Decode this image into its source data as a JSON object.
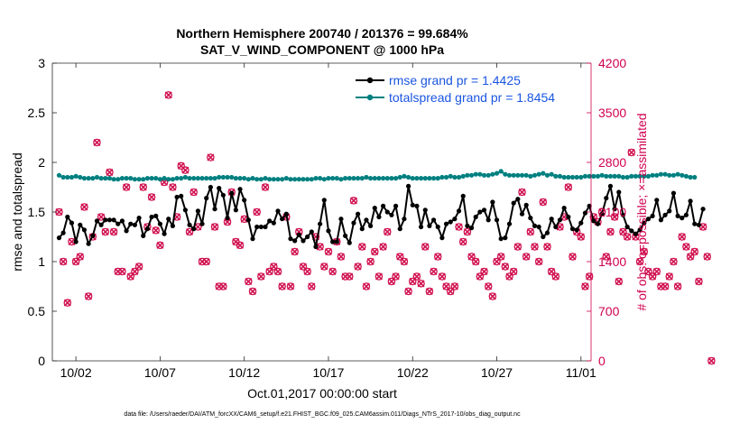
{
  "chart_data": {
    "type": "line",
    "title": "Northern Hemisphere 200740 / 201376 = 99.684%",
    "subtitle": "SAT_V_WIND_COMPONENT @ 1000 hPa",
    "xlabel": "Oct.01,2017 00:00:00 start",
    "ylabel_left": "rmse and totalspread",
    "ylabel_right": "# of obs: o=possible; ×=assimilated",
    "footnote": "data file: /Users/raeder/DAI/ATM_forcXX/CAM6_setup/f.e21.FHIST_BGC.f09_025.CAM6assim.011/Diags_NTrS_2017-10/obs_diag_output.nc",
    "xlim": [
      0.6,
      32.6
    ],
    "ylim_left": [
      0,
      3
    ],
    "ylim_right": [
      0,
      4200
    ],
    "x_ticks": [
      {
        "v": 2,
        "label": "10/02"
      },
      {
        "v": 7,
        "label": "10/07"
      },
      {
        "v": 12,
        "label": "10/12"
      },
      {
        "v": 17,
        "label": "10/17"
      },
      {
        "v": 22,
        "label": "10/22"
      },
      {
        "v": 27,
        "label": "10/27"
      },
      {
        "v": 32,
        "label": "11/01"
      }
    ],
    "y_ticks_left": [
      "0",
      "0.5",
      "1",
      "1.5",
      "2",
      "2.5",
      "3"
    ],
    "y_ticks_right": [
      "0",
      "700",
      "1400",
      "2100",
      "2800",
      "3500",
      "4200"
    ],
    "legend": [
      "rmse grand pr = 1.4425",
      "totalspread grand pr = 1.8454"
    ],
    "x_start": 1.0,
    "x_step": 0.25,
    "series": [
      {
        "name": "rmse",
        "color": "#000000",
        "axis": "left",
        "values": [
          1.24,
          1.29,
          1.45,
          1.39,
          1.2,
          1.37,
          1.32,
          1.18,
          1.26,
          1.41,
          1.37,
          1.42,
          1.42,
          1.42,
          1.38,
          1.41,
          1.31,
          1.38,
          1.37,
          1.44,
          1.26,
          1.33,
          1.45,
          1.46,
          1.38,
          1.28,
          1.43,
          1.36,
          1.65,
          1.66,
          1.52,
          1.37,
          1.33,
          1.51,
          1.38,
          1.64,
          1.75,
          1.53,
          1.74,
          1.67,
          1.44,
          1.69,
          1.52,
          1.73,
          1.62,
          1.42,
          1.23,
          1.35,
          1.35,
          1.35,
          1.41,
          1.39,
          1.51,
          1.43,
          1.48,
          1.23,
          1.21,
          1.27,
          1.21,
          1.25,
          1.3,
          1.15,
          1.38,
          1.62,
          1.31,
          1.2,
          1.2,
          1.43,
          1.26,
          1.19,
          1.39,
          1.48,
          1.33,
          1.42,
          1.36,
          1.54,
          1.45,
          1.56,
          1.5,
          1.47,
          1.56,
          1.33,
          1.43,
          1.76,
          1.57,
          1.56,
          1.35,
          1.52,
          1.36,
          1.42,
          1.35,
          1.24,
          1.38,
          1.4,
          1.43,
          1.51,
          1.66,
          1.36,
          1.34,
          1.45,
          1.5,
          1.52,
          1.42,
          1.6,
          1.42,
          1.23,
          1.24,
          1.38,
          1.59,
          1.63,
          1.48,
          1.57,
          1.44,
          1.36,
          1.35,
          1.25,
          1.29,
          1.43,
          1.35,
          1.42,
          1.54,
          1.45,
          1.33,
          1.32,
          1.39,
          1.49,
          1.56,
          1.41,
          1.38,
          1.48,
          1.64,
          1.76,
          1.53,
          1.7,
          1.47,
          1.35,
          1.31,
          1.28,
          1.32,
          1.39,
          1.43,
          1.46,
          1.62,
          1.42,
          1.47,
          1.51,
          1.69,
          1.46,
          1.44,
          1.47,
          1.61,
          1.38,
          1.37,
          1.53
        ]
      },
      {
        "name": "totalspread",
        "color": "#008080",
        "axis": "left",
        "values": [
          1.87,
          1.85,
          1.85,
          1.85,
          1.86,
          1.85,
          1.84,
          1.84,
          1.84,
          1.85,
          1.84,
          1.84,
          1.84,
          1.83,
          1.83,
          1.84,
          1.84,
          1.84,
          1.83,
          1.83,
          1.83,
          1.84,
          1.84,
          1.84,
          1.83,
          1.84,
          1.83,
          1.83,
          1.84,
          1.84,
          1.85,
          1.84,
          1.84,
          1.84,
          1.84,
          1.84,
          1.84,
          1.84,
          1.85,
          1.85,
          1.85,
          1.85,
          1.84,
          1.84,
          1.84,
          1.83,
          1.84,
          1.83,
          1.83,
          1.84,
          1.83,
          1.83,
          1.83,
          1.83,
          1.84,
          1.83,
          1.83,
          1.83,
          1.83,
          1.83,
          1.83,
          1.84,
          1.84,
          1.83,
          1.84,
          1.84,
          1.84,
          1.83,
          1.84,
          1.84,
          1.84,
          1.84,
          1.84,
          1.85,
          1.84,
          1.84,
          1.84,
          1.84,
          1.84,
          1.84,
          1.84,
          1.85,
          1.86,
          1.85,
          1.84,
          1.84,
          1.84,
          1.84,
          1.84,
          1.84,
          1.84,
          1.85,
          1.85,
          1.86,
          1.85,
          1.85,
          1.86,
          1.87,
          1.87,
          1.88,
          1.88,
          1.87,
          1.87,
          1.88,
          1.89,
          1.91,
          1.88,
          1.87,
          1.87,
          1.87,
          1.87,
          1.87,
          1.86,
          1.87,
          1.88,
          1.89,
          1.87,
          1.88,
          1.86,
          1.86,
          1.85,
          1.85,
          1.85,
          1.85,
          1.85,
          1.86,
          1.86,
          1.86,
          1.86,
          1.87,
          1.86,
          1.86,
          1.86,
          1.86,
          1.85,
          1.85,
          1.86,
          1.86,
          1.86,
          1.86,
          1.86,
          1.87,
          1.87,
          1.88,
          1.88,
          1.87,
          1.87,
          1.88,
          1.87,
          1.86,
          1.85,
          1.85
        ]
      },
      {
        "name": "obs_possible",
        "color": "#d0104f",
        "axis": "right",
        "values": [
          2100,
          1400,
          819,
          1680,
          1400,
          1470,
          2170,
          910,
          1750,
          3080,
          2030,
          1820,
          2660,
          1820,
          1260,
          1260,
          2450,
          1190,
          1260,
          1330,
          2450,
          1890,
          2310,
          1840,
          1630,
          2520,
          3750,
          2450,
          2030,
          2750,
          2690,
          1820,
          2380,
          1890,
          1400,
          1400,
          2870,
          1890,
          1050,
          1050,
          1960,
          2380,
          1680,
          1630,
          2000,
          1120,
          980,
          2100,
          1190,
          2450,
          1260,
          1330,
          1260,
          1050,
          2030,
          1050,
          1540,
          1820,
          1330,
          1260,
          1050,
          1750,
          1610,
          1330,
          1540,
          1260,
          1680,
          1470,
          1190,
          1190,
          2260,
          1330,
          1610,
          1050,
          1400,
          1540,
          1190,
          1610,
          1820,
          1120,
          1190,
          1470,
          1400,
          980,
          1120,
          1190,
          1090,
          1610,
          980,
          1260,
          1470,
          1190,
          1050,
          980,
          1050,
          1890,
          1680,
          1820,
          1470,
          1400,
          1190,
          1260,
          1050,
          910,
          1400,
          1470,
          1330,
          1190,
          1260,
          1610,
          2380,
          1470,
          1820,
          1610,
          1400,
          2240,
          1610,
          1260,
          1190,
          1890,
          2030,
          2450,
          1470,
          1820,
          1750,
          1050,
          1190,
          2030,
          1960,
          2100,
          1470,
          1820,
          2030,
          1120,
          1820,
          1750,
          2940,
          1750,
          1400,
          1540,
          1260,
          1190,
          1260,
          1050,
          1050,
          1190,
          1400,
          1050,
          1750,
          1610,
          1470,
          1540,
          1120,
          1890,
          1470,
          0
        ]
      },
      {
        "name": "obs_assimilated",
        "color": "#d0104f",
        "axis": "right",
        "values": [
          2100,
          1400,
          819,
          1680,
          1400,
          1470,
          2170,
          910,
          1750,
          3080,
          2030,
          1820,
          2660,
          1820,
          1260,
          1260,
          2450,
          1190,
          1260,
          1330,
          2450,
          1890,
          2310,
          1840,
          1630,
          2520,
          3750,
          2450,
          2030,
          2750,
          2690,
          1820,
          2380,
          1890,
          1400,
          1400,
          2870,
          1890,
          1050,
          1050,
          1960,
          2380,
          1680,
          1630,
          2000,
          1120,
          980,
          2100,
          1190,
          2450,
          1260,
          1330,
          1260,
          1050,
          2030,
          1050,
          1540,
          1820,
          1330,
          1260,
          1050,
          1750,
          1610,
          1330,
          1540,
          1260,
          1680,
          1470,
          1190,
          1190,
          2260,
          1330,
          1610,
          1050,
          1400,
          1540,
          1190,
          1610,
          1820,
          1120,
          1190,
          1470,
          1400,
          980,
          1120,
          1190,
          1090,
          1610,
          980,
          1260,
          1470,
          1190,
          1050,
          980,
          1050,
          1890,
          1680,
          1820,
          1470,
          1400,
          1190,
          1260,
          1050,
          910,
          1400,
          1470,
          1330,
          1190,
          1260,
          1610,
          2380,
          1470,
          1820,
          1610,
          1400,
          2240,
          1610,
          1260,
          1190,
          1890,
          2030,
          2450,
          1470,
          1820,
          1750,
          1050,
          1190,
          2030,
          1960,
          2100,
          1470,
          1820,
          2030,
          1120,
          1820,
          1750,
          2940,
          1750,
          1400,
          1540,
          1260,
          1190,
          1260,
          1050,
          1050,
          1190,
          1400,
          1050,
          1750,
          1610,
          1470,
          1540,
          1120,
          1890,
          1470,
          0
        ]
      }
    ]
  }
}
